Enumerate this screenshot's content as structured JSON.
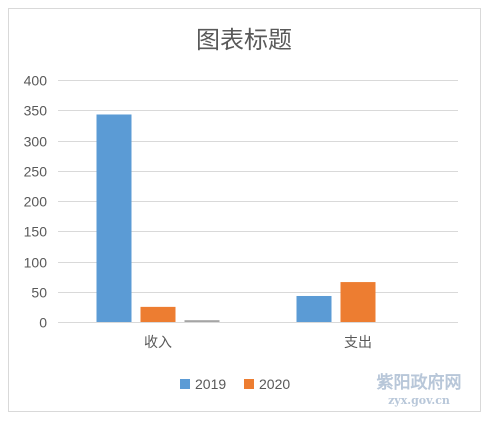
{
  "chart_data": {
    "type": "bar",
    "title": "图表标题",
    "xlabel": "",
    "ylabel": "",
    "ylim": [
      0,
      400
    ],
    "yticks": [
      0,
      50,
      100,
      150,
      200,
      250,
      300,
      350,
      400
    ],
    "grid": true,
    "legend_position": "bottom",
    "categories": [
      "收入",
      "支出"
    ],
    "series": [
      {
        "name": "2019",
        "color": "#5b9bd5",
        "values": [
          343,
          43
        ],
        "in_legend": true
      },
      {
        "name": "2020",
        "color": "#ed7d31",
        "values": [
          25,
          66
        ],
        "in_legend": true
      },
      {
        "name": "",
        "color": "#a5a5a5",
        "values": [
          3,
          0
        ],
        "in_legend": false
      }
    ]
  },
  "watermark": {
    "text": "紫阳政府网",
    "url_text": "zyx.gov.cn"
  }
}
